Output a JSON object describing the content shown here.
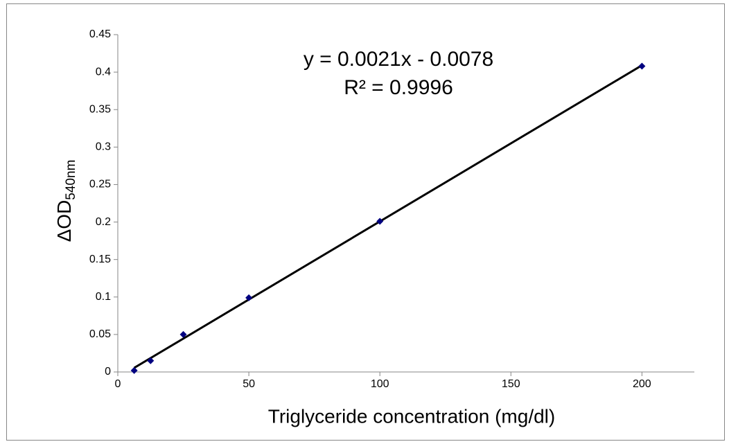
{
  "chart_data": {
    "type": "scatter",
    "x_label": "Triglyceride concentration (mg/dl)",
    "y_label": "ΔOD",
    "y_label_subscript": "540nm",
    "equation": "y = 0.0021x - 0.0078",
    "r_squared": "R² = 0.9996",
    "x": [
      6.25,
      12.5,
      25,
      50,
      100,
      200
    ],
    "series": [
      {
        "color": "#000080",
        "values": [
          0.002,
          0.015,
          0.05,
          0.099,
          0.201,
          0.408
        ]
      }
    ],
    "trendline_color": "#000000",
    "xlim": [
      0,
      220
    ],
    "xticks": [
      0,
      50,
      100,
      150,
      200
    ],
    "ylim": [
      0,
      0.45
    ],
    "yticks": [
      0,
      0.05,
      0.1,
      0.15,
      0.2,
      0.25,
      0.3,
      0.35,
      0.4,
      0.45
    ],
    "grid": false
  }
}
